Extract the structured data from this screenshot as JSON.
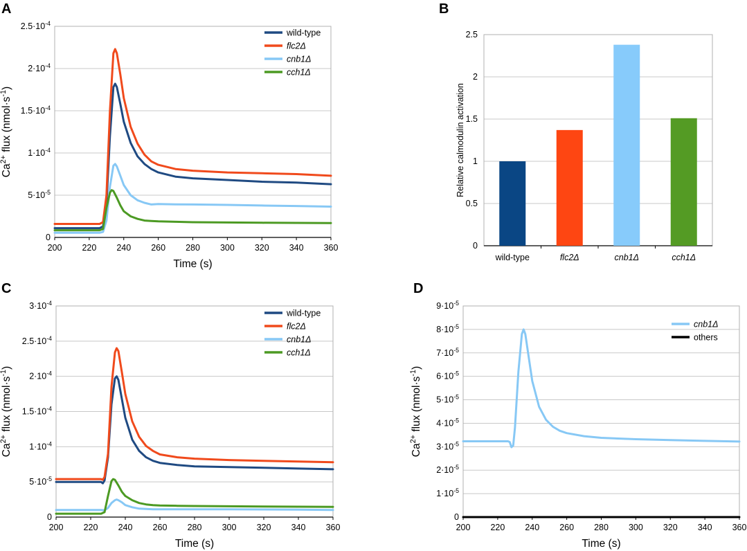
{
  "panels": [
    {
      "letter": "A"
    },
    {
      "letter": "B"
    },
    {
      "letter": "C"
    },
    {
      "letter": "D"
    }
  ],
  "colors": {
    "wild-type": "#1f4a82",
    "flc2": "#f04a1c",
    "cnb1": "#87c8f5",
    "cch1": "#4c9a23",
    "others": "#000000"
  },
  "chart_data": [
    {
      "id": "A",
      "type": "line",
      "xlabel": "Time (s)",
      "ylabel_main": "Ca",
      "ylabel_sup": "2+",
      "ylabel_rest": " flux (nmol·s",
      "ylabel_sup2": "-1",
      "ylabel_end": ")",
      "xlim": [
        200,
        360
      ],
      "ylim": [
        0,
        0.00025
      ],
      "xticks": [
        "200",
        "220",
        "240",
        "260",
        "280",
        "300",
        "320",
        "340",
        "360"
      ],
      "yticks": [
        {
          "v": 0,
          "label": "0"
        },
        {
          "v": 5e-05,
          "label": "5·10",
          "exp": "-5"
        },
        {
          "v": 0.0001,
          "label": "1·10",
          "exp": "-4"
        },
        {
          "v": 0.00015,
          "label": "1.5·10",
          "exp": "-4"
        },
        {
          "v": 0.0002,
          "label": "2·10",
          "exp": "-4"
        },
        {
          "v": 0.00025,
          "label": "2.5·10",
          "exp": "-4"
        }
      ],
      "series": [
        {
          "name": "wild-type",
          "italic": false,
          "color": "#1f4a82",
          "x": [
            200,
            226,
            228,
            230,
            232,
            234,
            235,
            236,
            238,
            240,
            244,
            248,
            252,
            256,
            260,
            270,
            280,
            300,
            320,
            340,
            360
          ],
          "y": [
            1.1e-05,
            1.1e-05,
            1.3e-05,
            4e-05,
            0.00012,
            0.000178,
            0.000182,
            0.000178,
            0.000158,
            0.000137,
            0.000112,
            9.6e-05,
            8.7e-05,
            8.1e-05,
            7.7e-05,
            7.2e-05,
            7e-05,
            6.8e-05,
            6.6e-05,
            6.5e-05,
            6.3e-05
          ]
        },
        {
          "name": "flc2Δ",
          "italic": true,
          "color": "#f04a1c",
          "x": [
            200,
            226,
            228,
            230,
            232,
            234,
            235,
            236,
            238,
            240,
            244,
            248,
            252,
            256,
            260,
            270,
            280,
            300,
            320,
            340,
            360
          ],
          "y": [
            1.6e-05,
            1.6e-05,
            1.8e-05,
            5e-05,
            0.00015,
            0.000218,
            0.000223,
            0.000218,
            0.000193,
            0.000165,
            0.000131,
            0.000111,
            9.8e-05,
            9e-05,
            8.6e-05,
            8.1e-05,
            7.9e-05,
            7.7e-05,
            7.6e-05,
            7.5e-05,
            7.3e-05
          ]
        },
        {
          "name": "cnb1Δ",
          "italic": true,
          "color": "#87c8f5",
          "x": [
            200,
            226,
            228,
            230,
            232,
            234,
            235,
            236,
            238,
            240,
            244,
            248,
            252,
            256,
            260,
            270,
            280,
            300,
            320,
            340,
            360
          ],
          "y": [
            5.5e-06,
            5.5e-06,
            6.5e-06,
            2e-05,
            6e-05,
            8.5e-05,
            8.7e-05,
            8.4e-05,
            7.3e-05,
            6.2e-05,
            5e-05,
            4.4e-05,
            4.1e-05,
            3.9e-05,
            3.95e-05,
            3.92e-05,
            3.9e-05,
            3.85e-05,
            3.78e-05,
            3.72e-05,
            3.65e-05
          ]
        },
        {
          "name": "cch1Δ",
          "italic": true,
          "color": "#4c9a23",
          "x": [
            200,
            226,
            228,
            230,
            232,
            233,
            234,
            236,
            238,
            240,
            244,
            248,
            252,
            256,
            260,
            270,
            280,
            300,
            320,
            340,
            360
          ],
          "y": [
            8.5e-06,
            8.5e-06,
            1e-05,
            3.5e-05,
            5.3e-05,
            5.6e-05,
            5.5e-05,
            4.7e-05,
            3.8e-05,
            3.1e-05,
            2.5e-05,
            2.2e-05,
            2e-05,
            1.95e-05,
            1.9e-05,
            1.85e-05,
            1.8e-05,
            1.77e-05,
            1.74e-05,
            1.72e-05,
            1.7e-05
          ]
        }
      ],
      "legend": "top-right"
    },
    {
      "id": "B",
      "type": "bar",
      "ylabel": "Relative calmodulin activation",
      "ylim": [
        0,
        2.5
      ],
      "yticks": [
        "0",
        "0.5",
        "1",
        "1.5",
        "2",
        "2.5"
      ],
      "categories": [
        {
          "label": "wild-type",
          "italic": false
        },
        {
          "label": "flc2Δ",
          "italic": true
        },
        {
          "label": "cnb1Δ",
          "italic": true
        },
        {
          "label": "cch1Δ",
          "italic": true
        }
      ],
      "values": [
        1.0,
        1.37,
        2.38,
        1.51
      ],
      "bar_colors": [
        "#0a4684",
        "#fe4612",
        "#87cbfb",
        "#549b24"
      ]
    },
    {
      "id": "C",
      "type": "line",
      "xlabel": "Time (s)",
      "ylabel_main": "Ca",
      "ylabel_sup": "2+",
      "ylabel_rest": " flux (nmol·s",
      "ylabel_sup2": "-1",
      "ylabel_end": ")",
      "xlim": [
        200,
        360
      ],
      "ylim": [
        0,
        0.0003
      ],
      "xticks": [
        "200",
        "220",
        "240",
        "260",
        "280",
        "300",
        "320",
        "340",
        "360"
      ],
      "yticks": [
        {
          "v": 0,
          "label": "0"
        },
        {
          "v": 5e-05,
          "label": "5·10",
          "exp": "-5"
        },
        {
          "v": 0.0001,
          "label": "1·10",
          "exp": "-4"
        },
        {
          "v": 0.00015,
          "label": "1.5·10",
          "exp": "-4"
        },
        {
          "v": 0.0002,
          "label": "2·10",
          "exp": "-4"
        },
        {
          "v": 0.00025,
          "label": "2.5·10",
          "exp": "-4"
        },
        {
          "v": 0.0003,
          "label": "3·10",
          "exp": "-4"
        }
      ],
      "series": [
        {
          "name": "wild-type",
          "italic": false,
          "color": "#1f4a82",
          "x": [
            200,
            226,
            227,
            228,
            230,
            232,
            234,
            235,
            236,
            238,
            240,
            244,
            248,
            252,
            256,
            260,
            270,
            280,
            300,
            320,
            340,
            360
          ],
          "y": [
            5e-05,
            5e-05,
            4.8e-05,
            5.2e-05,
            8.5e-05,
            0.00016,
            0.000197,
            0.0002,
            0.000195,
            0.000168,
            0.000141,
            0.00011,
            9.4e-05,
            8.5e-05,
            8e-05,
            7.7e-05,
            7.4e-05,
            7.2e-05,
            7.1e-05,
            7e-05,
            6.9e-05,
            6.8e-05
          ]
        },
        {
          "name": "flc2Δ",
          "italic": true,
          "color": "#f04a1c",
          "x": [
            200,
            226,
            227,
            228,
            230,
            232,
            234,
            235,
            236,
            238,
            240,
            244,
            248,
            252,
            256,
            260,
            270,
            280,
            300,
            320,
            340,
            360
          ],
          "y": [
            5.4e-05,
            5.4e-05,
            5.3e-05,
            5.7e-05,
            9e-05,
            0.000185,
            0.000234,
            0.00024,
            0.000236,
            0.000206,
            0.000175,
            0.000136,
            0.000114,
            0.000101,
            9.4e-05,
            8.9e-05,
            8.5e-05,
            8.3e-05,
            8.1e-05,
            8e-05,
            7.9e-05,
            7.8e-05
          ]
        },
        {
          "name": "cnb1Δ",
          "italic": true,
          "color": "#87c8f5",
          "x": [
            200,
            226,
            228,
            230,
            232,
            234,
            235,
            236,
            238,
            240,
            244,
            248,
            252,
            256,
            260,
            270,
            280,
            300,
            320,
            340,
            360
          ],
          "y": [
            1e-05,
            1e-05,
            9.5e-06,
            1.3e-05,
            2e-05,
            2.4e-05,
            2.5e-05,
            2.4e-05,
            2.1e-05,
            1.7e-05,
            1.4e-05,
            1.2e-05,
            1.15e-05,
            1.1e-05,
            1.1e-05,
            1.1e-05,
            1.1e-05,
            1.1e-05,
            1.08e-05,
            1.05e-05,
            1e-05
          ]
        },
        {
          "name": "cch1Δ",
          "italic": true,
          "color": "#4c9a23",
          "x": [
            200,
            226,
            228,
            230,
            232,
            233,
            234,
            236,
            238,
            240,
            244,
            248,
            252,
            256,
            260,
            270,
            280,
            300,
            320,
            340,
            360
          ],
          "y": [
            4.8e-06,
            4.8e-06,
            7e-06,
            3e-05,
            5.1e-05,
            5.4e-05,
            5.3e-05,
            4.5e-05,
            3.6e-05,
            3e-05,
            2.4e-05,
            2e-05,
            1.8e-05,
            1.7e-05,
            1.65e-05,
            1.6e-05,
            1.57e-05,
            1.53e-05,
            1.5e-05,
            1.48e-05,
            1.46e-05
          ]
        }
      ],
      "legend": "top-right"
    },
    {
      "id": "D",
      "type": "line",
      "xlabel": "Time (s)",
      "ylabel_main": "Ca",
      "ylabel_sup": "2+",
      "ylabel_rest": " flux (nmol·s",
      "ylabel_sup2": "-1",
      "ylabel_end": ")",
      "xlim": [
        200,
        360
      ],
      "ylim": [
        0,
        9e-05
      ],
      "xticks": [
        "200",
        "220",
        "240",
        "260",
        "280",
        "300",
        "320",
        "340",
        "360"
      ],
      "yticks": [
        {
          "v": 0,
          "label": "0"
        },
        {
          "v": 1e-05,
          "label": "1·10",
          "exp": "-5"
        },
        {
          "v": 2e-05,
          "label": "2·10",
          "exp": "-5"
        },
        {
          "v": 3e-05,
          "label": "3·10",
          "exp": "-5"
        },
        {
          "v": 4e-05,
          "label": "4·10",
          "exp": "-5"
        },
        {
          "v": 5e-05,
          "label": "5·10",
          "exp": "-5"
        },
        {
          "v": 6e-05,
          "label": "6·10",
          "exp": "-5"
        },
        {
          "v": 7e-05,
          "label": "7·10",
          "exp": "-5"
        },
        {
          "v": 8e-05,
          "label": "8·10",
          "exp": "-5"
        },
        {
          "v": 9e-05,
          "label": "9·10",
          "exp": "-5"
        }
      ],
      "series": [
        {
          "name": "cnb1Δ",
          "italic": true,
          "color": "#87c8f5",
          "x": [
            200,
            226,
            227,
            228,
            229,
            230,
            232,
            234,
            235,
            236,
            238,
            240,
            244,
            248,
            252,
            256,
            260,
            270,
            280,
            300,
            320,
            340,
            360
          ],
          "y": [
            3.23e-05,
            3.23e-05,
            3.2e-05,
            2.98e-05,
            3.05e-05,
            3.8e-05,
            6.2e-05,
            7.8e-05,
            8e-05,
            7.8e-05,
            6.8e-05,
            5.8e-05,
            4.7e-05,
            4.15e-05,
            3.85e-05,
            3.68e-05,
            3.58e-05,
            3.45e-05,
            3.38e-05,
            3.32e-05,
            3.28e-05,
            3.25e-05,
            3.22e-05
          ]
        },
        {
          "name": "others",
          "italic": false,
          "color": "#000000",
          "x": [
            200,
            360
          ],
          "y": [
            0,
            0
          ]
        }
      ],
      "legend": "top-right"
    }
  ]
}
